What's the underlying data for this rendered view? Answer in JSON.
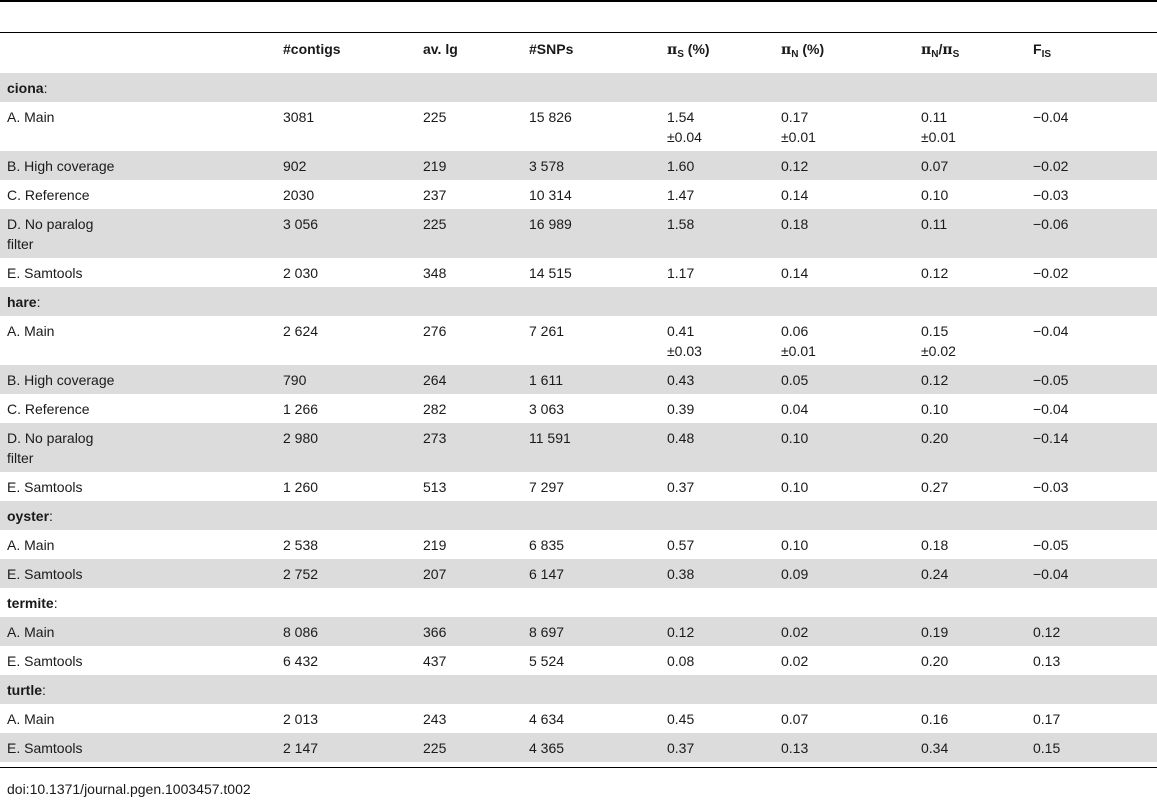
{
  "header": {
    "label": "",
    "contigs": "#contigs",
    "avlg": "av. lg",
    "snps": "#SNPs",
    "pis": {
      "sym": "π",
      "sub": "S",
      "tail": " (%)"
    },
    "pin": {
      "sym": "π",
      "sub": "N",
      "tail": " (%)"
    },
    "ratio": {
      "sym1": "π",
      "sub1": "N",
      "slash": "/",
      "sym2": "π",
      "sub2": "S"
    },
    "fis": {
      "base": "F",
      "sub": "IS"
    }
  },
  "groups": [
    {
      "name": "ciona",
      "colon": ":",
      "rows": [
        {
          "label": "A. Main",
          "contigs": "3081",
          "avlg": "225",
          "snps": "15 826",
          "pis": "1.54",
          "pis_sd": "±0.04",
          "pin": "0.17",
          "pin_sd": "±0.01",
          "ratio": "0.11",
          "ratio_sd": "±0.01",
          "fis": "−0.04"
        },
        {
          "label": "B. High coverage",
          "contigs": "902",
          "avlg": "219",
          "snps": "3 578",
          "pis": "1.60",
          "pin": "0.12",
          "ratio": "0.07",
          "fis": "−0.02"
        },
        {
          "label": "C. Reference",
          "contigs": "2030",
          "avlg": "237",
          "snps": "10 314",
          "pis": "1.47",
          "pin": "0.14",
          "ratio": "0.10",
          "fis": "−0.03"
        },
        {
          "label": "D. No paralog",
          "label2": "filter",
          "contigs": "3 056",
          "avlg": "225",
          "snps": "16 989",
          "pis": "1.58",
          "pin": "0.18",
          "ratio": "0.11",
          "fis": "−0.06"
        },
        {
          "label": "E. Samtools",
          "contigs": "2 030",
          "avlg": "348",
          "snps": "14 515",
          "pis": "1.17",
          "pin": "0.14",
          "ratio": "0.12",
          "fis": "−0.02"
        }
      ]
    },
    {
      "name": "hare",
      "colon": ":",
      "rows": [
        {
          "label": "A. Main",
          "contigs": "2 624",
          "avlg": "276",
          "snps": "7 261",
          "pis": "0.41",
          "pis_sd": "±0.03",
          "pin": "0.06",
          "pin_sd": "±0.01",
          "ratio": "0.15",
          "ratio_sd": "±0.02",
          "fis": "−0.04"
        },
        {
          "label": "B. High coverage",
          "contigs": "790",
          "avlg": "264",
          "snps": "1 611",
          "pis": "0.43",
          "pin": "0.05",
          "ratio": "0.12",
          "fis": "−0.05"
        },
        {
          "label": "C. Reference",
          "contigs": "1 266",
          "avlg": "282",
          "snps": "3 063",
          "pis": "0.39",
          "pin": "0.04",
          "ratio": "0.10",
          "fis": "−0.04"
        },
        {
          "label": "D. No paralog",
          "label2": "filter",
          "contigs": "2 980",
          "avlg": "273",
          "snps": "11 591",
          "pis": "0.48",
          "pin": "0.10",
          "ratio": "0.20",
          "fis": "−0.14"
        },
        {
          "label": "E. Samtools",
          "contigs": "1 260",
          "avlg": "513",
          "snps": "7 297",
          "pis": "0.37",
          "pin": "0.10",
          "ratio": "0.27",
          "fis": "−0.03"
        }
      ]
    },
    {
      "name": "oyster",
      "colon": ":",
      "rows": [
        {
          "label": "A. Main",
          "contigs": "2 538",
          "avlg": "219",
          "snps": "6 835",
          "pis": "0.57",
          "pin": "0.10",
          "ratio": "0.18",
          "fis": "−0.05"
        },
        {
          "label": "E. Samtools",
          "contigs": "2 752",
          "avlg": "207",
          "snps": "6 147",
          "pis": "0.38",
          "pin": "0.09",
          "ratio": "0.24",
          "fis": "−0.04"
        }
      ]
    },
    {
      "name": "termite",
      "colon": ":",
      "rows": [
        {
          "label": "A. Main",
          "contigs": "8 086",
          "avlg": "366",
          "snps": "8 697",
          "pis": "0.12",
          "pin": "0.02",
          "ratio": "0.19",
          "fis": "0.12"
        },
        {
          "label": "E. Samtools",
          "contigs": "6 432",
          "avlg": "437",
          "snps": "5 524",
          "pis": "0.08",
          "pin": "0.02",
          "ratio": "0.20",
          "fis": "0.13"
        }
      ]
    },
    {
      "name": "turtle",
      "colon": ":",
      "rows": [
        {
          "label": "A. Main",
          "contigs": "2 013",
          "avlg": "243",
          "snps": "4 634",
          "pis": "0.45",
          "pin": "0.07",
          "ratio": "0.16",
          "fis": "0.17"
        },
        {
          "label": "E. Samtools",
          "contigs": "2 147",
          "avlg": "225",
          "snps": "4 365",
          "pis": "0.37",
          "pin": "0.13",
          "ratio": "0.34",
          "fis": "0.15"
        }
      ]
    }
  ],
  "footer": {
    "doi": "doi:10.1371/journal.pgen.1003457.t002"
  },
  "colors": {
    "band": "#dcdcdc",
    "rule": "#000000",
    "text": "#1a1a1a"
  }
}
